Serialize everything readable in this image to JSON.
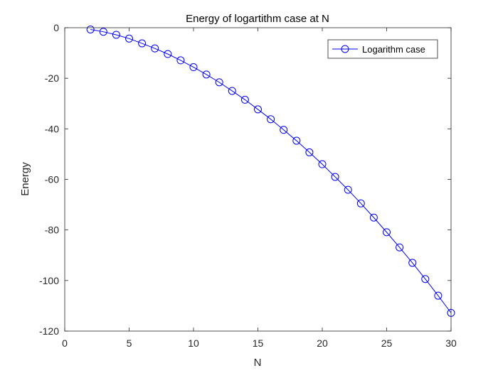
{
  "chart_data": {
    "type": "line",
    "title": "Energy of logartithm case at N",
    "xlabel": "N",
    "ylabel": "Energy",
    "xlim": [
      0,
      30
    ],
    "ylim": [
      -120,
      0
    ],
    "xticks": [
      0,
      5,
      10,
      15,
      20,
      25,
      30
    ],
    "yticks": [
      0,
      -20,
      -40,
      -60,
      -80,
      -100,
      -120
    ],
    "xtick_labels": [
      "0",
      "5",
      "10",
      "15",
      "20",
      "25",
      "30"
    ],
    "ytick_labels": [
      "0",
      "-20",
      "-40",
      "-60",
      "-80",
      "-100",
      "-120"
    ],
    "grid": false,
    "legend_position": "top-right",
    "series": [
      {
        "name": "Logarithm case",
        "color": "#0000ff",
        "marker": "circle",
        "x": [
          2,
          3,
          4,
          5,
          6,
          7,
          8,
          9,
          10,
          11,
          12,
          13,
          14,
          15,
          16,
          17,
          18,
          19,
          20,
          21,
          22,
          23,
          24,
          25,
          26,
          27,
          28,
          29,
          30
        ],
        "y": [
          -0.7,
          -1.6,
          -2.8,
          -4.3,
          -6.2,
          -8.2,
          -10.4,
          -12.9,
          -15.6,
          -18.5,
          -21.6,
          -25.0,
          -28.5,
          -32.3,
          -36.2,
          -40.4,
          -44.7,
          -49.3,
          -54.0,
          -59.0,
          -64.1,
          -69.5,
          -75.1,
          -80.9,
          -86.9,
          -93.0,
          -99.4,
          -106.0,
          -112.8
        ]
      }
    ]
  }
}
